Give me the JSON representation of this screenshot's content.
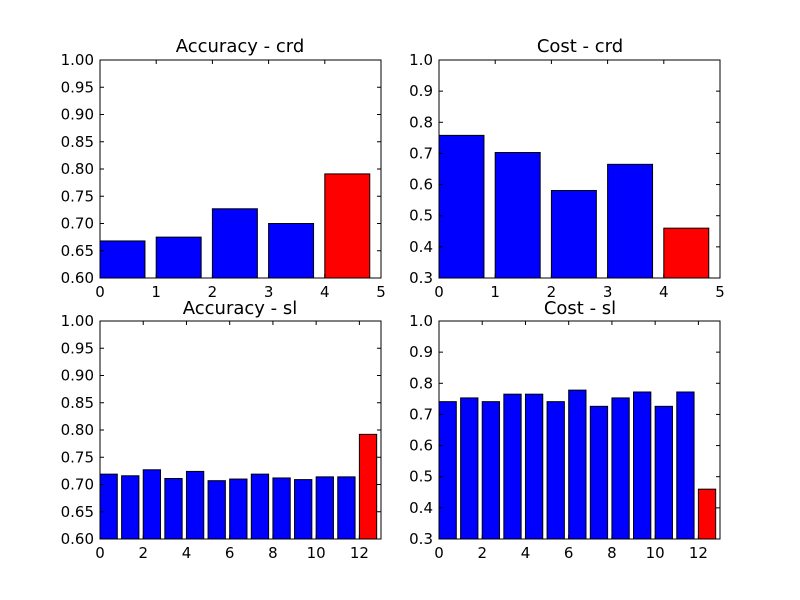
{
  "charts": [
    {
      "chart_data": {
        "type": "bar",
        "title": "Accuracy - crd",
        "x": [
          0,
          1,
          2,
          3,
          4
        ],
        "values": [
          0.668,
          0.675,
          0.727,
          0.7,
          0.791
        ],
        "colors": [
          "#0000ff",
          "#0000ff",
          "#0000ff",
          "#0000ff",
          "#ff0000"
        ],
        "bar_width": 0.8,
        "xlim": [
          0,
          5
        ],
        "ylim": [
          0.6,
          1.0
        ],
        "xticks": [
          0,
          1,
          2,
          3,
          4,
          5
        ],
        "xtick_labels": [
          "0",
          "1",
          "2",
          "3",
          "4",
          "5"
        ],
        "yticks": [
          0.6,
          0.65,
          0.7,
          0.75,
          0.8,
          0.85,
          0.9,
          0.95,
          1.0
        ],
        "ytick_labels": [
          "0.60",
          "0.65",
          "0.70",
          "0.75",
          "0.80",
          "0.85",
          "0.90",
          "0.95",
          "1.00"
        ],
        "xlabel": "",
        "ylabel": "",
        "grid": false,
        "legend": "none"
      }
    },
    {
      "chart_data": {
        "type": "bar",
        "title": "Cost - crd",
        "x": [
          0,
          1,
          2,
          3,
          4
        ],
        "values": [
          0.758,
          0.703,
          0.581,
          0.665,
          0.46
        ],
        "colors": [
          "#0000ff",
          "#0000ff",
          "#0000ff",
          "#0000ff",
          "#ff0000"
        ],
        "bar_width": 0.8,
        "xlim": [
          0,
          5
        ],
        "ylim": [
          0.3,
          1.0
        ],
        "xticks": [
          0,
          1,
          2,
          3,
          4,
          5
        ],
        "xtick_labels": [
          "0",
          "1",
          "2",
          "3",
          "4",
          "5"
        ],
        "yticks": [
          0.3,
          0.4,
          0.5,
          0.6,
          0.7,
          0.8,
          0.9,
          1.0
        ],
        "ytick_labels": [
          "0.3",
          "0.4",
          "0.5",
          "0.6",
          "0.7",
          "0.8",
          "0.9",
          "1.0"
        ],
        "xlabel": "",
        "ylabel": "",
        "grid": false,
        "legend": "none"
      }
    },
    {
      "chart_data": {
        "type": "bar",
        "title": "Accuracy - sl",
        "x": [
          0,
          1,
          2,
          3,
          4,
          5,
          6,
          7,
          8,
          9,
          10,
          11,
          12
        ],
        "values": [
          0.719,
          0.716,
          0.727,
          0.711,
          0.724,
          0.707,
          0.71,
          0.719,
          0.712,
          0.709,
          0.714,
          0.714,
          0.792
        ],
        "colors": [
          "#0000ff",
          "#0000ff",
          "#0000ff",
          "#0000ff",
          "#0000ff",
          "#0000ff",
          "#0000ff",
          "#0000ff",
          "#0000ff",
          "#0000ff",
          "#0000ff",
          "#0000ff",
          "#ff0000"
        ],
        "bar_width": 0.8,
        "xlim": [
          0,
          13
        ],
        "ylim": [
          0.6,
          1.0
        ],
        "xticks": [
          0,
          2,
          4,
          6,
          8,
          10,
          12
        ],
        "xtick_labels": [
          "0",
          "2",
          "4",
          "6",
          "8",
          "10",
          "12"
        ],
        "yticks": [
          0.6,
          0.65,
          0.7,
          0.75,
          0.8,
          0.85,
          0.9,
          0.95,
          1.0
        ],
        "ytick_labels": [
          "0.60",
          "0.65",
          "0.70",
          "0.75",
          "0.80",
          "0.85",
          "0.90",
          "0.95",
          "1.00"
        ],
        "xlabel": "",
        "ylabel": "",
        "grid": false,
        "legend": "none"
      }
    },
    {
      "chart_data": {
        "type": "bar",
        "title": "Cost - sl",
        "x": [
          0,
          1,
          2,
          3,
          4,
          5,
          6,
          7,
          8,
          9,
          10,
          11,
          12
        ],
        "values": [
          0.741,
          0.753,
          0.741,
          0.765,
          0.765,
          0.741,
          0.778,
          0.726,
          0.753,
          0.772,
          0.726,
          0.772,
          0.46
        ],
        "colors": [
          "#0000ff",
          "#0000ff",
          "#0000ff",
          "#0000ff",
          "#0000ff",
          "#0000ff",
          "#0000ff",
          "#0000ff",
          "#0000ff",
          "#0000ff",
          "#0000ff",
          "#0000ff",
          "#ff0000"
        ],
        "bar_width": 0.8,
        "xlim": [
          0,
          13
        ],
        "ylim": [
          0.3,
          1.0
        ],
        "xticks": [
          0,
          2,
          4,
          6,
          8,
          10,
          12
        ],
        "xtick_labels": [
          "0",
          "2",
          "4",
          "6",
          "8",
          "10",
          "12"
        ],
        "yticks": [
          0.3,
          0.4,
          0.5,
          0.6,
          0.7,
          0.8,
          0.9,
          1.0
        ],
        "ytick_labels": [
          "0.3",
          "0.4",
          "0.5",
          "0.6",
          "0.7",
          "0.8",
          "0.9",
          "1.0"
        ],
        "xlabel": "",
        "ylabel": "",
        "grid": false,
        "legend": "none"
      }
    }
  ]
}
